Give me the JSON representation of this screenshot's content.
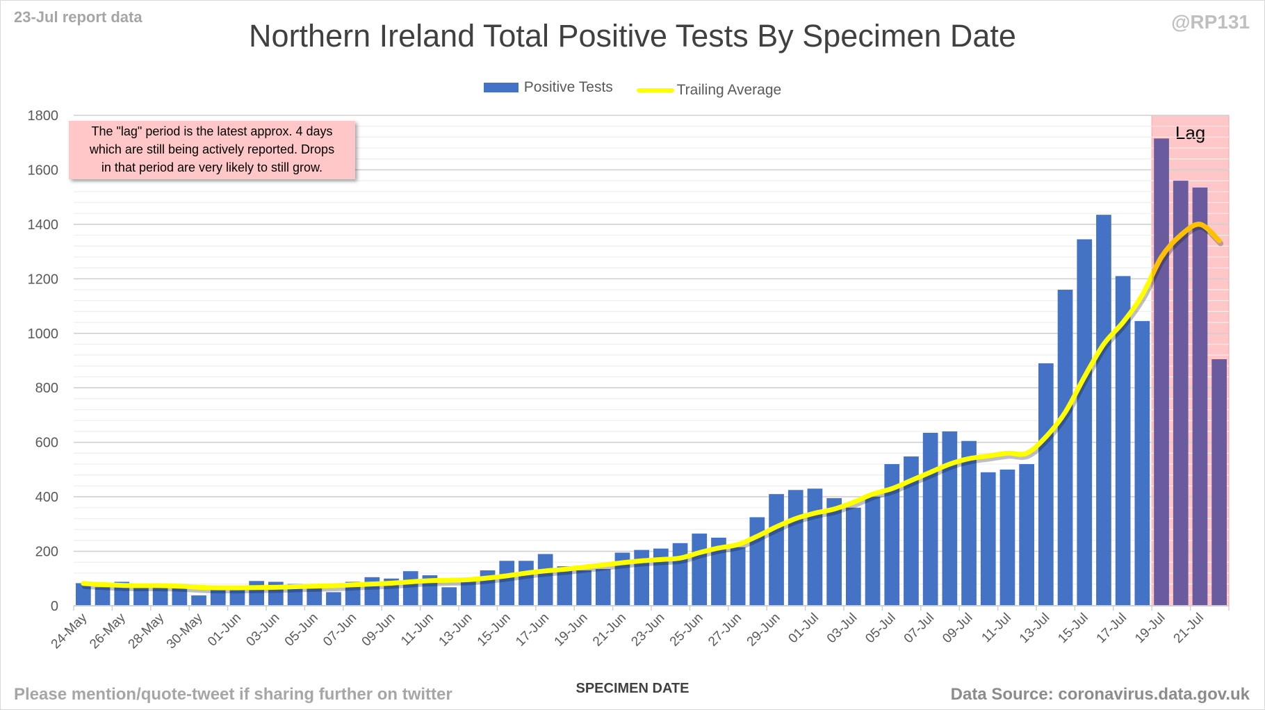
{
  "header": {
    "report_date": "23-Jul report data",
    "handle": "@RP131"
  },
  "footer": {
    "left": "Please mention/quote-tweet if sharing further on twitter",
    "right": "Data Source: coronavirus.data.gov.uk"
  },
  "annotation": {
    "lines": [
      "The \"lag\" period is the latest approx. 4 days",
      "which are still being actively reported.  Drops",
      "in that period are very likely to still grow."
    ],
    "lag_label": "Lag"
  },
  "colors": {
    "bar": "#4472c4",
    "bar_lag": "#6a5b9e",
    "line": "#ffff00",
    "line_lag": "#ffc000",
    "lag_bg": "#ffc7c7"
  },
  "chart_data": {
    "type": "bar",
    "title": "Northern Ireland Total Positive Tests By Specimen Date",
    "xlabel": "SPECIMEN DATE",
    "ylabel": "",
    "ylim": [
      0,
      1800
    ],
    "yticks": [
      "0",
      "200",
      "400",
      "600",
      "800",
      "1000",
      "1200",
      "1400",
      "1600",
      "1800"
    ],
    "legend": {
      "position": "top",
      "entries": [
        "Positive Tests",
        "Trailing Average"
      ]
    },
    "lag_days": 4,
    "categories": [
      "24-May",
      "25-May",
      "26-May",
      "27-May",
      "28-May",
      "29-May",
      "30-May",
      "31-May",
      "01-Jun",
      "02-Jun",
      "03-Jun",
      "04-Jun",
      "05-Jun",
      "06-Jun",
      "07-Jun",
      "08-Jun",
      "09-Jun",
      "10-Jun",
      "11-Jun",
      "12-Jun",
      "13-Jun",
      "14-Jun",
      "15-Jun",
      "16-Jun",
      "17-Jun",
      "18-Jun",
      "19-Jun",
      "20-Jun",
      "21-Jun",
      "22-Jun",
      "23-Jun",
      "24-Jun",
      "25-Jun",
      "26-Jun",
      "27-Jun",
      "28-Jun",
      "29-Jun",
      "30-Jun",
      "01-Jul",
      "02-Jul",
      "03-Jul",
      "04-Jul",
      "05-Jul",
      "06-Jul",
      "07-Jul",
      "08-Jul",
      "09-Jul",
      "10-Jul",
      "11-Jul",
      "12-Jul",
      "13-Jul",
      "14-Jul",
      "15-Jul",
      "16-Jul",
      "17-Jul",
      "18-Jul",
      "19-Jul",
      "20-Jul",
      "21-Jul",
      "22-Jul"
    ],
    "series": [
      {
        "name": "Positive Tests",
        "type": "bar",
        "values": [
          83,
          68,
          88,
          70,
          68,
          70,
          38,
          62,
          65,
          91,
          88,
          80,
          72,
          50,
          88,
          105,
          100,
          127,
          112,
          68,
          90,
          130,
          165,
          165,
          190,
          145,
          130,
          135,
          195,
          205,
          210,
          230,
          265,
          250,
          215,
          325,
          410,
          425,
          430,
          395,
          360,
          400,
          520,
          548,
          635,
          640,
          605,
          490,
          500,
          520,
          890,
          1160,
          1345,
          1435,
          1210,
          1045,
          1715,
          1560,
          1535,
          905
        ]
      },
      {
        "name": "Trailing Average",
        "type": "line",
        "values": [
          82,
          78,
          75,
          74,
          74,
          72,
          68,
          66,
          66,
          67,
          68,
          70,
          72,
          74,
          77,
          80,
          83,
          88,
          92,
          94,
          96,
          102,
          110,
          120,
          128,
          134,
          142,
          150,
          158,
          165,
          170,
          175,
          195,
          212,
          225,
          255,
          290,
          320,
          340,
          355,
          380,
          410,
          430,
          460,
          490,
          520,
          540,
          550,
          560,
          560,
          620,
          710,
          840,
          960,
          1040,
          1140,
          1280,
          1360,
          1400,
          1340
        ]
      }
    ]
  }
}
